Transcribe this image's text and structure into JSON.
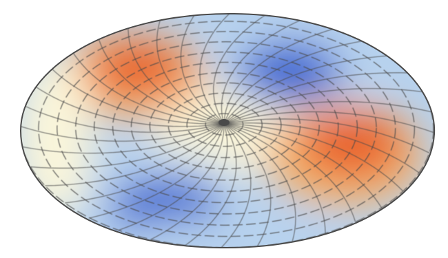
{
  "figure": {
    "kind": "3d-surface-render",
    "shape": "disc",
    "colormap": "cool-warm",
    "colors": {
      "background": "#ffffff",
      "warm": "#e8602c",
      "warm_light": "#f6b36b",
      "neutral": "#fbf6da",
      "cool_light": "#b7d2ee",
      "cool": "#2f5fd0",
      "mesh": "#4a4a4a"
    },
    "lobes": [
      {
        "name": "warm-lobe-upper-left",
        "tone": "warm"
      },
      {
        "name": "cool-lobe-upper-right",
        "tone": "cool"
      },
      {
        "name": "warm-lobe-lower-right",
        "tone": "warm"
      },
      {
        "name": "cool-lobe-lower-left",
        "tone": "cool"
      }
    ],
    "mesh": {
      "rings": 11,
      "spokes": 36
    }
  }
}
